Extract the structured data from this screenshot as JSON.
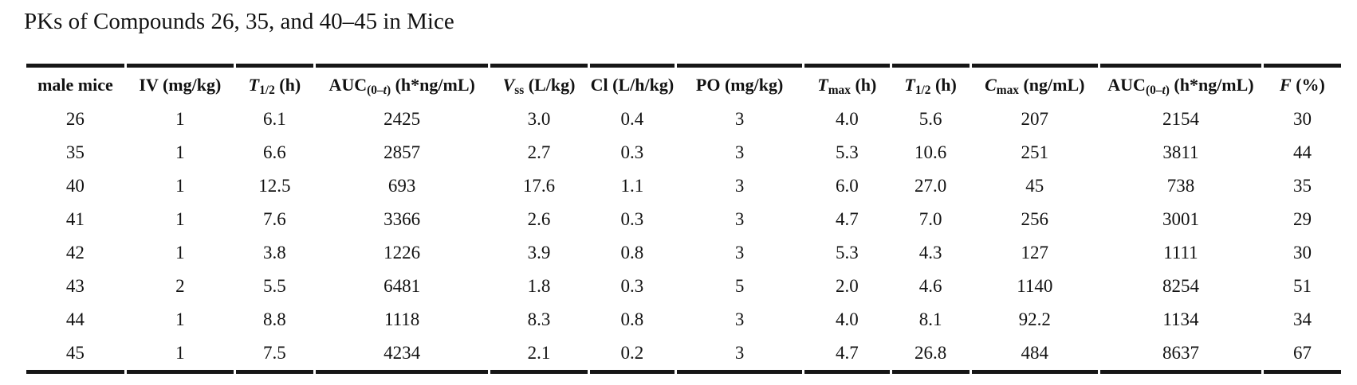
{
  "title": "PKs of Compounds 26, 35, and 40–45 in Mice",
  "colors": {
    "text": "#121212",
    "rule": "#161616",
    "background": "#ffffff"
  },
  "chart_data": {
    "type": "table",
    "title": "PKs of Compounds 26, 35, and 40–45 in Mice",
    "columns": [
      {
        "id": "male-mice",
        "label": "male mice",
        "parts": [
          {
            "t": "male mice"
          }
        ]
      },
      {
        "id": "iv-dose",
        "label": "IV (mg/kg)",
        "parts": [
          {
            "t": "IV (mg/kg)"
          }
        ]
      },
      {
        "id": "t12-iv",
        "label": "T1/2 (h)",
        "parts": [
          {
            "t": "T",
            "i": true
          },
          {
            "t": "1/2",
            "sub": true
          },
          {
            "t": " (h)"
          }
        ]
      },
      {
        "id": "auc-iv",
        "label": "AUC(0–t) (h*ng/mL)",
        "parts": [
          {
            "t": "AUC"
          },
          {
            "t": "(0–",
            "sub": true
          },
          {
            "t": "t",
            "sub": true,
            "i": true
          },
          {
            "t": ")",
            "sub": true
          },
          {
            "t": " (h*ng/mL)"
          }
        ]
      },
      {
        "id": "vss",
        "label": "Vss (L/kg)",
        "parts": [
          {
            "t": "V",
            "i": true
          },
          {
            "t": "ss",
            "sub": true
          },
          {
            "t": " (L/kg)"
          }
        ]
      },
      {
        "id": "cl",
        "label": "Cl (L/h/kg)",
        "parts": [
          {
            "t": "Cl (L/h/kg)"
          }
        ]
      },
      {
        "id": "po-dose",
        "label": "PO (mg/kg)",
        "parts": [
          {
            "t": "PO (mg/kg)"
          }
        ]
      },
      {
        "id": "tmax",
        "label": "Tmax (h)",
        "parts": [
          {
            "t": "T",
            "i": true
          },
          {
            "t": "max",
            "sub": true
          },
          {
            "t": " (h)"
          }
        ]
      },
      {
        "id": "t12-po",
        "label": "T1/2 (h)",
        "parts": [
          {
            "t": "T",
            "i": true
          },
          {
            "t": "1/2",
            "sub": true
          },
          {
            "t": " (h)"
          }
        ]
      },
      {
        "id": "cmax",
        "label": "Cmax (ng/mL)",
        "parts": [
          {
            "t": "C",
            "i": true
          },
          {
            "t": "max",
            "sub": true
          },
          {
            "t": " (ng/mL)"
          }
        ]
      },
      {
        "id": "auc-po",
        "label": "AUC(0–t) (h*ng/mL)",
        "parts": [
          {
            "t": "AUC"
          },
          {
            "t": "(0–",
            "sub": true
          },
          {
            "t": "t",
            "sub": true,
            "i": true
          },
          {
            "t": ")",
            "sub": true
          },
          {
            "t": " (h*ng/mL)"
          }
        ]
      },
      {
        "id": "f",
        "label": "F (%)",
        "parts": [
          {
            "t": "F",
            "i": true
          },
          {
            "t": " (%)"
          }
        ]
      }
    ],
    "rows": [
      [
        "26",
        "1",
        "6.1",
        "2425",
        "3.0",
        "0.4",
        "3",
        "4.0",
        "5.6",
        "207",
        "2154",
        "30"
      ],
      [
        "35",
        "1",
        "6.6",
        "2857",
        "2.7",
        "0.3",
        "3",
        "5.3",
        "10.6",
        "251",
        "3811",
        "44"
      ],
      [
        "40",
        "1",
        "12.5",
        "693",
        "17.6",
        "1.1",
        "3",
        "6.0",
        "27.0",
        "45",
        "738",
        "35"
      ],
      [
        "41",
        "1",
        "7.6",
        "3366",
        "2.6",
        "0.3",
        "3",
        "4.7",
        "7.0",
        "256",
        "3001",
        "29"
      ],
      [
        "42",
        "1",
        "3.8",
        "1226",
        "3.9",
        "0.8",
        "3",
        "5.3",
        "4.3",
        "127",
        "1111",
        "30"
      ],
      [
        "43",
        "2",
        "5.5",
        "6481",
        "1.8",
        "0.3",
        "5",
        "2.0",
        "4.6",
        "1140",
        "8254",
        "51"
      ],
      [
        "44",
        "1",
        "8.8",
        "1118",
        "8.3",
        "0.8",
        "3",
        "4.0",
        "8.1",
        "92.2",
        "1134",
        "34"
      ],
      [
        "45",
        "1",
        "7.5",
        "4234",
        "2.1",
        "0.2",
        "3",
        "4.7",
        "26.8",
        "484",
        "8637",
        "67"
      ]
    ]
  }
}
